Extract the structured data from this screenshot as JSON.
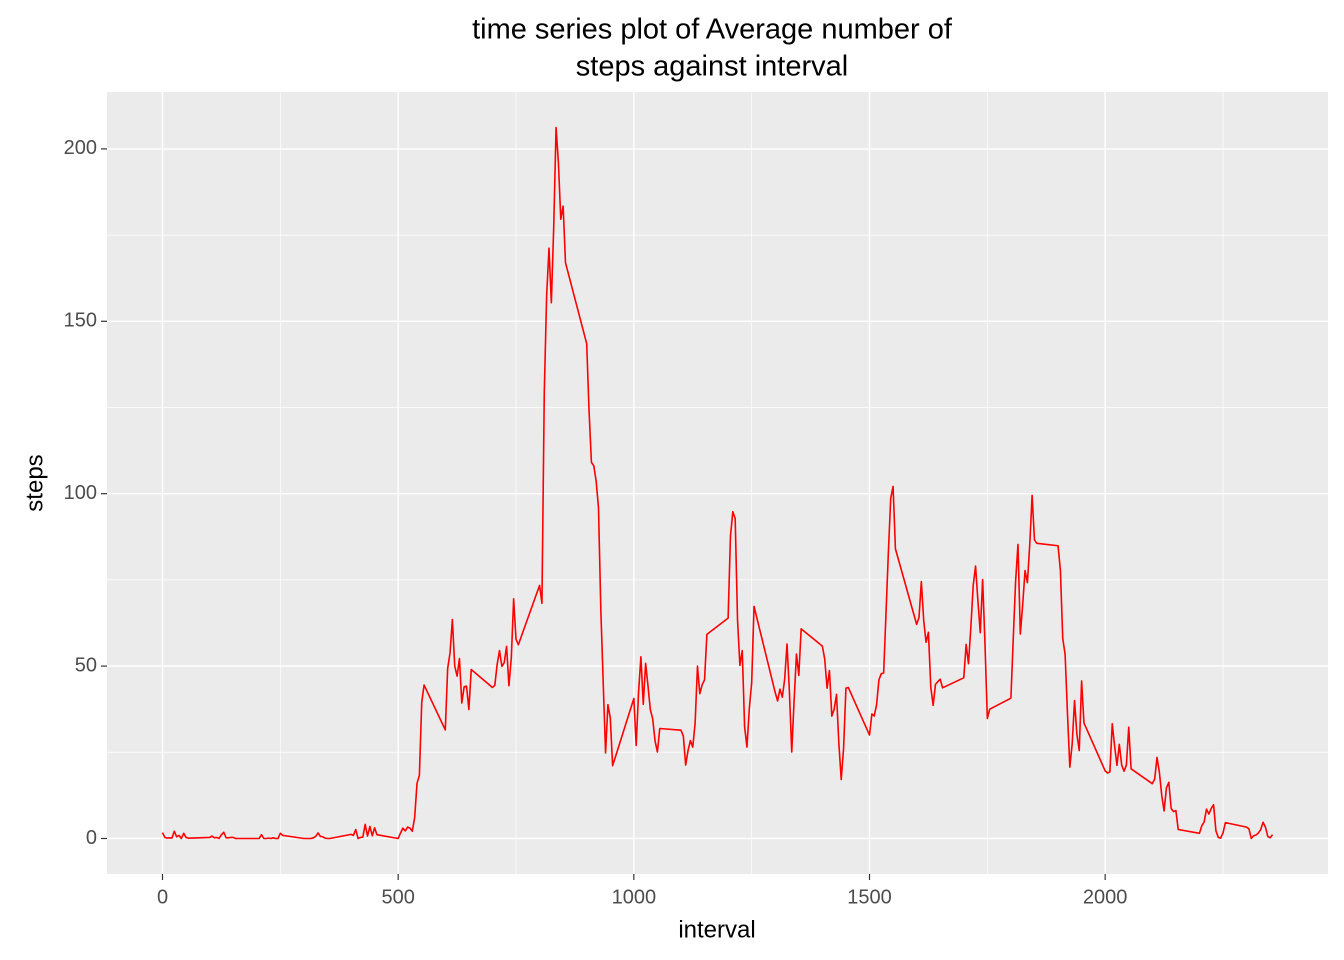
{
  "chart_data": {
    "type": "line",
    "title": [
      "time series plot of Average number of",
      "steps against interval"
    ],
    "x_label": "interval",
    "y_label": "steps",
    "x": [
      0,
      5,
      10,
      15,
      20,
      25,
      30,
      35,
      40,
      45,
      50,
      55,
      100,
      105,
      110,
      115,
      120,
      125,
      130,
      135,
      140,
      145,
      150,
      155,
      200,
      205,
      210,
      215,
      220,
      225,
      230,
      235,
      240,
      245,
      250,
      255,
      300,
      305,
      310,
      315,
      320,
      325,
      330,
      335,
      340,
      345,
      350,
      355,
      400,
      405,
      410,
      415,
      420,
      425,
      430,
      435,
      440,
      445,
      450,
      455,
      500,
      505,
      510,
      515,
      520,
      525,
      530,
      535,
      540,
      545,
      550,
      555,
      600,
      605,
      610,
      615,
      620,
      625,
      630,
      635,
      640,
      645,
      650,
      655,
      700,
      705,
      710,
      715,
      720,
      725,
      730,
      735,
      740,
      745,
      750,
      755,
      800,
      805,
      810,
      815,
      820,
      825,
      830,
      835,
      840,
      845,
      850,
      855,
      900,
      905,
      910,
      915,
      920,
      925,
      930,
      935,
      940,
      945,
      950,
      955,
      1000,
      1005,
      1010,
      1015,
      1020,
      1025,
      1030,
      1035,
      1040,
      1045,
      1050,
      1055,
      1100,
      1105,
      1110,
      1115,
      1120,
      1125,
      1130,
      1135,
      1140,
      1145,
      1150,
      1155,
      1200,
      1205,
      1210,
      1215,
      1220,
      1225,
      1230,
      1235,
      1240,
      1245,
      1250,
      1255,
      1300,
      1305,
      1310,
      1315,
      1320,
      1325,
      1330,
      1335,
      1340,
      1345,
      1350,
      1355,
      1400,
      1405,
      1410,
      1415,
      1420,
      1425,
      1430,
      1435,
      1440,
      1445,
      1450,
      1455,
      1500,
      1505,
      1510,
      1515,
      1520,
      1525,
      1530,
      1535,
      1540,
      1545,
      1550,
      1555,
      1600,
      1605,
      1610,
      1615,
      1620,
      1625,
      1630,
      1635,
      1640,
      1645,
      1650,
      1655,
      1700,
      1705,
      1710,
      1715,
      1720,
      1725,
      1730,
      1735,
      1740,
      1745,
      1750,
      1755,
      1800,
      1805,
      1810,
      1815,
      1820,
      1825,
      1830,
      1835,
      1840,
      1845,
      1850,
      1855,
      1900,
      1905,
      1910,
      1915,
      1920,
      1925,
      1930,
      1935,
      1940,
      1945,
      1950,
      1955,
      2000,
      2005,
      2010,
      2015,
      2020,
      2025,
      2030,
      2035,
      2040,
      2045,
      2050,
      2055,
      2100,
      2105,
      2110,
      2115,
      2120,
      2125,
      2130,
      2135,
      2140,
      2145,
      2150,
      2155,
      2200,
      2205,
      2210,
      2215,
      2220,
      2225,
      2230,
      2235,
      2240,
      2245,
      2250,
      2255,
      2300,
      2305,
      2310,
      2315,
      2320,
      2325,
      2330,
      2335,
      2340,
      2345,
      2350,
      2355
    ],
    "series": [
      {
        "name": "steps",
        "color": "#FF0000",
        "values": [
          1.7,
          0.3,
          0.1,
          0.2,
          0.1,
          2.1,
          0.5,
          0.9,
          0,
          1.5,
          0.3,
          0.1,
          0.3,
          0.7,
          0.2,
          0.3,
          0,
          1.1,
          1.8,
          0.2,
          0.2,
          0.3,
          0.3,
          0,
          0,
          0,
          1.1,
          0,
          0,
          0.1,
          0,
          0.2,
          0,
          0,
          1.5,
          0.9,
          0,
          0,
          0,
          0,
          0.2,
          0.6,
          1.6,
          0.6,
          0.5,
          0.1,
          0,
          0,
          1.2,
          0.9,
          2.6,
          0,
          0.3,
          0.4,
          4.1,
          0.7,
          3.5,
          0.8,
          3.1,
          1.1,
          0,
          1.6,
          3.0,
          2.2,
          3.3,
          3.0,
          2.1,
          6.1,
          16.0,
          18.3,
          39.5,
          44.5,
          31.5,
          49.3,
          53.8,
          63.5,
          50.0,
          47.1,
          52.2,
          39.3,
          44.0,
          44.2,
          37.4,
          49.0,
          43.8,
          44.4,
          50.5,
          54.5,
          49.9,
          51.0,
          55.7,
          44.3,
          52.3,
          69.5,
          57.8,
          56.2,
          73.4,
          68.2,
          129.4,
          157.5,
          171.2,
          155.4,
          177.3,
          206.2,
          195.9,
          179.6,
          183.4,
          167.0,
          143.5,
          124.0,
          109.1,
          108.1,
          103.7,
          95.9,
          66.2,
          45.2,
          24.8,
          38.8,
          35.0,
          21.1,
          40.6,
          27.0,
          42.4,
          52.7,
          38.9,
          50.8,
          44.3,
          37.4,
          34.7,
          28.3,
          25.1,
          31.9,
          31.4,
          29.7,
          21.3,
          25.5,
          28.4,
          26.5,
          33.4,
          50.0,
          42.0,
          44.6,
          46.0,
          59.2,
          63.9,
          87.7,
          94.8,
          92.8,
          63.4,
          50.2,
          54.5,
          32.4,
          26.5,
          37.7,
          45.1,
          67.3,
          42.3,
          39.9,
          43.3,
          41.0,
          46.2,
          56.4,
          42.8,
          25.1,
          39.9,
          53.5,
          47.3,
          60.8,
          55.8,
          52.0,
          43.6,
          48.7,
          35.5,
          37.5,
          41.8,
          27.5,
          17.1,
          26.1,
          43.6,
          43.8,
          30.0,
          36.1,
          35.5,
          38.8,
          46.0,
          47.8,
          48.0,
          65.3,
          82.9,
          98.7,
          102.1,
          84.0,
          62.1,
          64.1,
          74.5,
          63.2,
          56.9,
          59.8,
          43.9,
          38.6,
          44.7,
          45.5,
          46.2,
          43.7,
          46.6,
          56.3,
          50.7,
          61.2,
          73.4,
          79.0,
          68.9,
          59.7,
          75.1,
          56.5,
          34.8,
          37.5,
          40.7,
          58.0,
          74.7,
          85.3,
          59.3,
          67.8,
          77.7,
          74.2,
          85.3,
          99.5,
          86.6,
          85.6,
          84.9,
          77.8,
          58.0,
          53.4,
          36.3,
          20.7,
          27.4,
          40.0,
          30.2,
          25.5,
          45.7,
          33.5,
          19.6,
          19.0,
          19.3,
          33.3,
          26.8,
          21.2,
          27.3,
          21.3,
          19.5,
          21.3,
          32.3,
          20.2,
          15.9,
          17.2,
          23.5,
          19.2,
          12.5,
          8.0,
          14.7,
          16.3,
          8.7,
          7.8,
          8.1,
          2.6,
          1.5,
          3.7,
          4.8,
          8.5,
          7.1,
          8.7,
          9.8,
          2.2,
          0.3,
          0.1,
          1.6,
          4.6,
          3.3,
          2.8,
          0,
          0.8,
          1.0,
          1.6,
          2.6,
          4.7,
          3.3,
          0.6,
          0.2,
          1.1
        ]
      }
    ],
    "xlim": [
      -117.75,
      2472.75
    ],
    "ylim": [
      -10.3,
      216.5
    ],
    "xticks": [
      0,
      500,
      1000,
      1500,
      2000
    ],
    "yticks": [
      0,
      50,
      100,
      150,
      200
    ],
    "x_minor_grid": [
      250,
      750,
      1250,
      1750,
      2250
    ],
    "y_minor_grid": [
      25,
      75,
      125,
      175
    ],
    "grid": true,
    "panel_color": "#EBEBEB"
  }
}
